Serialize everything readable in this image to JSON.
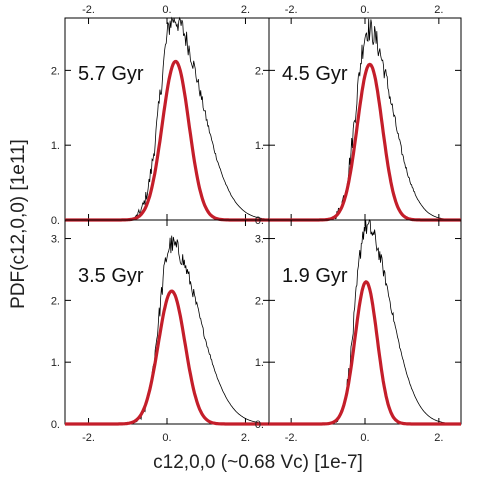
{
  "chart_data": {
    "type": "line",
    "ylabel": "PDF(c12,0,0) [1e11]",
    "xlabel": "c12,0,0 (~0.68 Vc) [1e-7]",
    "xlim": [
      -2.6,
      2.6
    ],
    "x_ticks": [
      -2,
      0,
      2
    ],
    "x_tick_labels": [
      "-2.",
      "0.",
      "2."
    ],
    "grid": false,
    "legend": "none",
    "panels": [
      {
        "label": "5.7 Gyr",
        "ylim": [
          0,
          2.7
        ],
        "y_ticks": [
          0,
          1,
          2
        ],
        "y_tick_labels": [
          "0.",
          "1.",
          "2."
        ],
        "series": [
          {
            "role": "histogram",
            "color": "#000000",
            "mu": 0.15,
            "sigma": 0.33,
            "peak": 2.7,
            "skew": 2.2
          },
          {
            "role": "fit",
            "color": "#c41e2a",
            "mu": 0.22,
            "sigma": 0.34,
            "peak": 2.12
          }
        ]
      },
      {
        "label": "4.5 Gyr",
        "ylim": [
          0,
          2.7
        ],
        "y_ticks": [
          0,
          1,
          2
        ],
        "y_tick_labels": [
          "0.",
          "1.",
          "2."
        ],
        "series": [
          {
            "role": "histogram",
            "color": "#000000",
            "mu": 0.08,
            "sigma": 0.32,
            "peak": 2.55,
            "skew": 2.0
          },
          {
            "role": "fit",
            "color": "#c41e2a",
            "mu": 0.13,
            "sigma": 0.34,
            "peak": 2.08
          }
        ]
      },
      {
        "label": "3.5 Gyr",
        "ylim": [
          0,
          3.3
        ],
        "y_ticks": [
          0,
          1,
          2,
          3
        ],
        "y_tick_labels": [
          "0.",
          "1.",
          "2.",
          "3."
        ],
        "series": [
          {
            "role": "histogram",
            "color": "#000000",
            "mu": 0.1,
            "sigma": 0.3,
            "peak": 2.9,
            "skew": 2.4
          },
          {
            "role": "fit",
            "color": "#c41e2a",
            "mu": 0.12,
            "sigma": 0.34,
            "peak": 2.15
          }
        ]
      },
      {
        "label": "1.9 Gyr",
        "ylim": [
          0,
          3.3
        ],
        "y_ticks": [
          0,
          1,
          2,
          3
        ],
        "y_tick_labels": [
          "0.",
          "1.",
          "2.",
          "3."
        ],
        "series": [
          {
            "role": "histogram",
            "color": "#000000",
            "mu": 0.02,
            "sigma": 0.28,
            "peak": 3.2,
            "skew": 2.4
          },
          {
            "role": "fit",
            "color": "#c41e2a",
            "mu": 0.03,
            "sigma": 0.3,
            "peak": 2.3
          }
        ]
      }
    ]
  }
}
